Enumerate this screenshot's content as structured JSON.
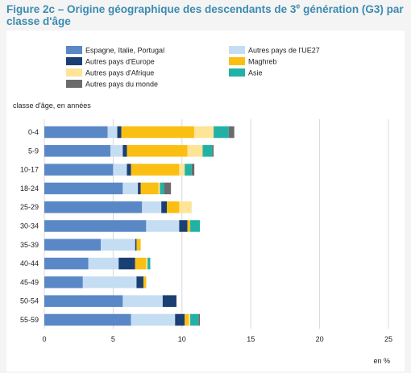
{
  "title_prefix": "Figure 2c – Origine géographique des descendants de 3",
  "title_sup": "e",
  "title_suffix": " génération (G3) par classe d'âge",
  "chart_data": {
    "type": "bar",
    "orientation": "horizontal",
    "stacked": true,
    "ylabel": "classe d'âge, en années",
    "xlabel": "en %",
    "xlim": [
      0,
      25
    ],
    "xticks": [
      0,
      5,
      10,
      15,
      20,
      25
    ],
    "grid": true,
    "legend_position": "top",
    "categories": [
      "0-4",
      "5-9",
      "10-17",
      "18-24",
      "25-29",
      "30-34",
      "35-39",
      "40-44",
      "45-49",
      "50-54",
      "55-59"
    ],
    "series": [
      {
        "name": "Espagne, Italie, Portugal",
        "color": "#5a88c6",
        "values": [
          4.6,
          4.8,
          5.0,
          5.7,
          7.1,
          7.4,
          4.1,
          3.2,
          2.8,
          5.7,
          6.3
        ]
      },
      {
        "name": "Autres pays de l'UE27",
        "color": "#c5ddf2",
        "values": [
          0.7,
          0.9,
          1.0,
          1.1,
          1.4,
          2.4,
          2.5,
          2.2,
          3.9,
          2.9,
          3.2
        ]
      },
      {
        "name": "Autres pays d'Europe",
        "color": "#1a3f73",
        "values": [
          0.3,
          0.3,
          0.3,
          0.2,
          0.4,
          0.6,
          0.1,
          1.2,
          0.5,
          1.0,
          0.7
        ]
      },
      {
        "name": "Maghreb",
        "color": "#fbbf14",
        "values": [
          5.3,
          4.4,
          3.5,
          1.3,
          0.9,
          0.2,
          0.3,
          0.8,
          0.2,
          0.0,
          0.3
        ]
      },
      {
        "name": "Autres pays d'Afrique",
        "color": "#fde497",
        "values": [
          1.4,
          1.1,
          0.4,
          0.1,
          0.9,
          0.0,
          0.0,
          0.1,
          0.0,
          0.0,
          0.1
        ]
      },
      {
        "name": "Asie",
        "color": "#22b2a5",
        "values": [
          1.1,
          0.7,
          0.5,
          0.3,
          0.0,
          0.7,
          0.0,
          0.2,
          0.0,
          0.0,
          0.6
        ]
      },
      {
        "name": "Autres pays du monde",
        "color": "#6b6b6b",
        "values": [
          0.4,
          0.1,
          0.2,
          0.5,
          0.0,
          0.0,
          0.0,
          0.0,
          0.0,
          0.0,
          0.1
        ]
      }
    ]
  }
}
